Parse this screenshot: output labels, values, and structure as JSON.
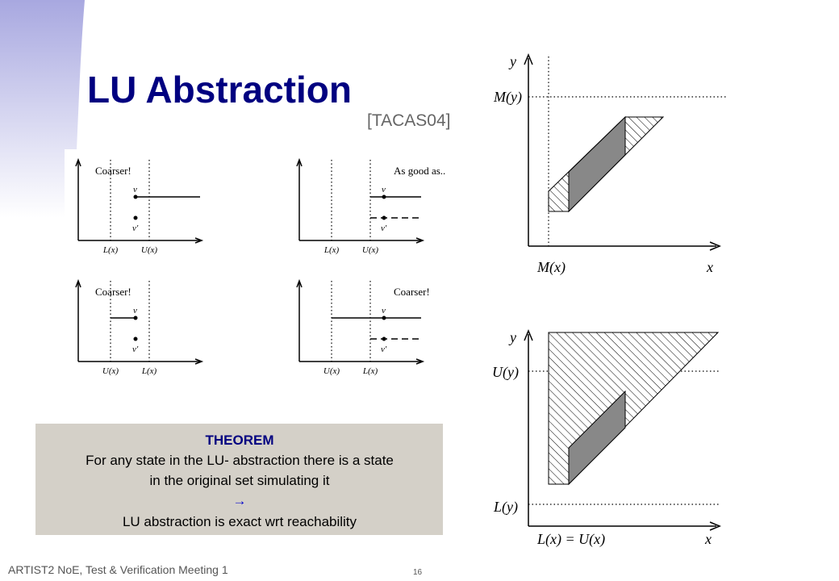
{
  "header": {
    "title": "LU Abstraction",
    "reference": "[TACAS04]"
  },
  "small_diagrams": [
    {
      "caption": "Coarser!",
      "x_labels": [
        "L(x)",
        "U(x)"
      ],
      "point_labels": [
        "ν",
        "ν'"
      ]
    },
    {
      "caption": "As good as..",
      "x_labels": [
        "L(x)",
        "U(x)"
      ],
      "point_labels": [
        "ν",
        "ν'"
      ]
    },
    {
      "caption": "Coarser!",
      "x_labels": [
        "U(x)",
        "L(x)"
      ],
      "point_labels": [
        "ν",
        "ν'"
      ]
    },
    {
      "caption": "Coarser!",
      "x_labels": [
        "U(x)",
        "L(x)"
      ],
      "point_labels": [
        "ν",
        "ν'"
      ]
    }
  ],
  "top_diagram": {
    "y_axis": "y",
    "x_axis": "x",
    "y_label": "M(y)",
    "x_label": "M(x)"
  },
  "bottom_diagram": {
    "y_axis": "y",
    "x_axis": "x",
    "y_upper": "U(y)",
    "y_lower": "L(y)",
    "x_label": "L(x) = U(x)"
  },
  "theorem": {
    "heading": "THEOREM",
    "lines": [
      "For any state in the LU- abstraction there is a state",
      "in the original set simulating it",
      "→",
      "LU abstraction is exact wrt reachability"
    ]
  },
  "footer": {
    "left": "ARTIST2 NoE, Test & Verification Meeting 1",
    "page": "16"
  }
}
